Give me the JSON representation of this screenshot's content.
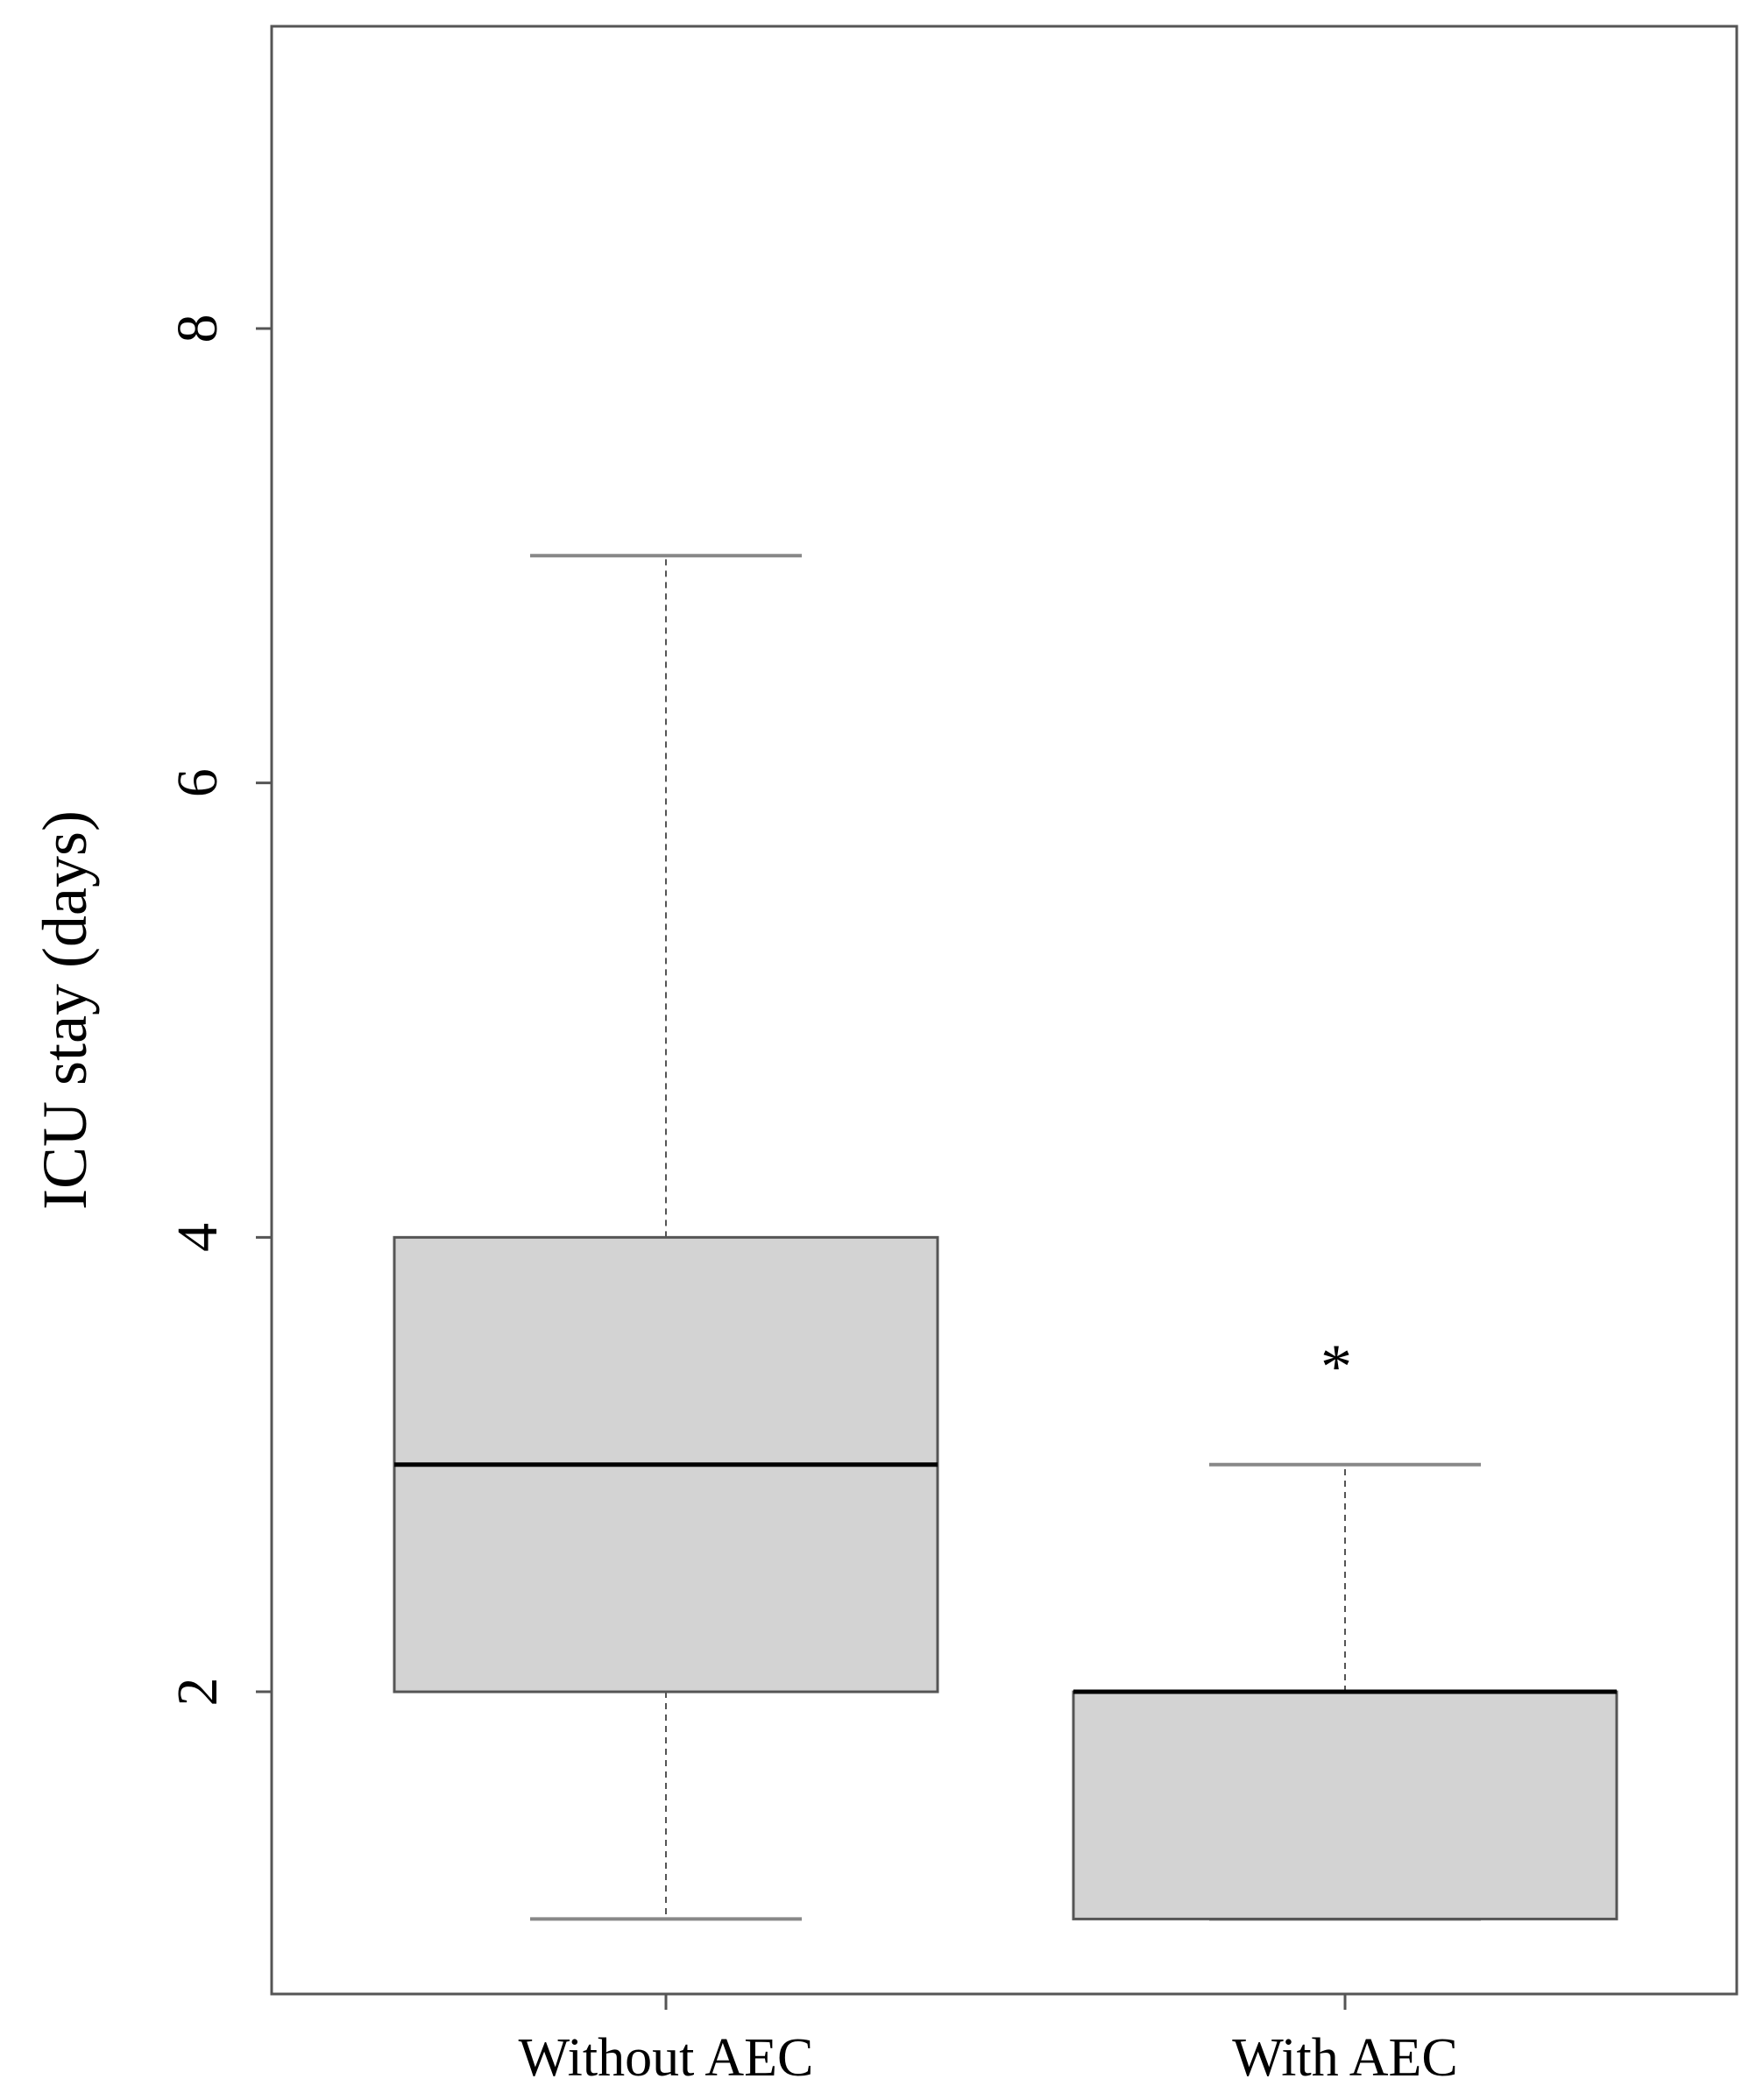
{
  "chart_data": {
    "type": "box",
    "ylabel": "ICU stay (days)",
    "xlabel": "",
    "ylim": [
      0.67,
      9.33
    ],
    "yticks": [
      2,
      4,
      6,
      8
    ],
    "grid": false,
    "categories": [
      "Without AEC",
      "With AEC"
    ],
    "boxes": [
      {
        "category": "Without AEC",
        "whisker_low": 1,
        "q1": 2,
        "median": 3,
        "q3": 4,
        "whisker_high": 7
      },
      {
        "category": "With AEC",
        "whisker_low": 1,
        "q1": 1,
        "median": 2,
        "q3": 2,
        "whisker_high": 3
      }
    ],
    "annotations": [
      {
        "text": "*",
        "category": "With AEC",
        "y": 3.5
      }
    ],
    "colors": {
      "box_fill": "#d3d3d3",
      "box_stroke": "#555555",
      "median": "#000000",
      "whisker": "#888888"
    }
  }
}
